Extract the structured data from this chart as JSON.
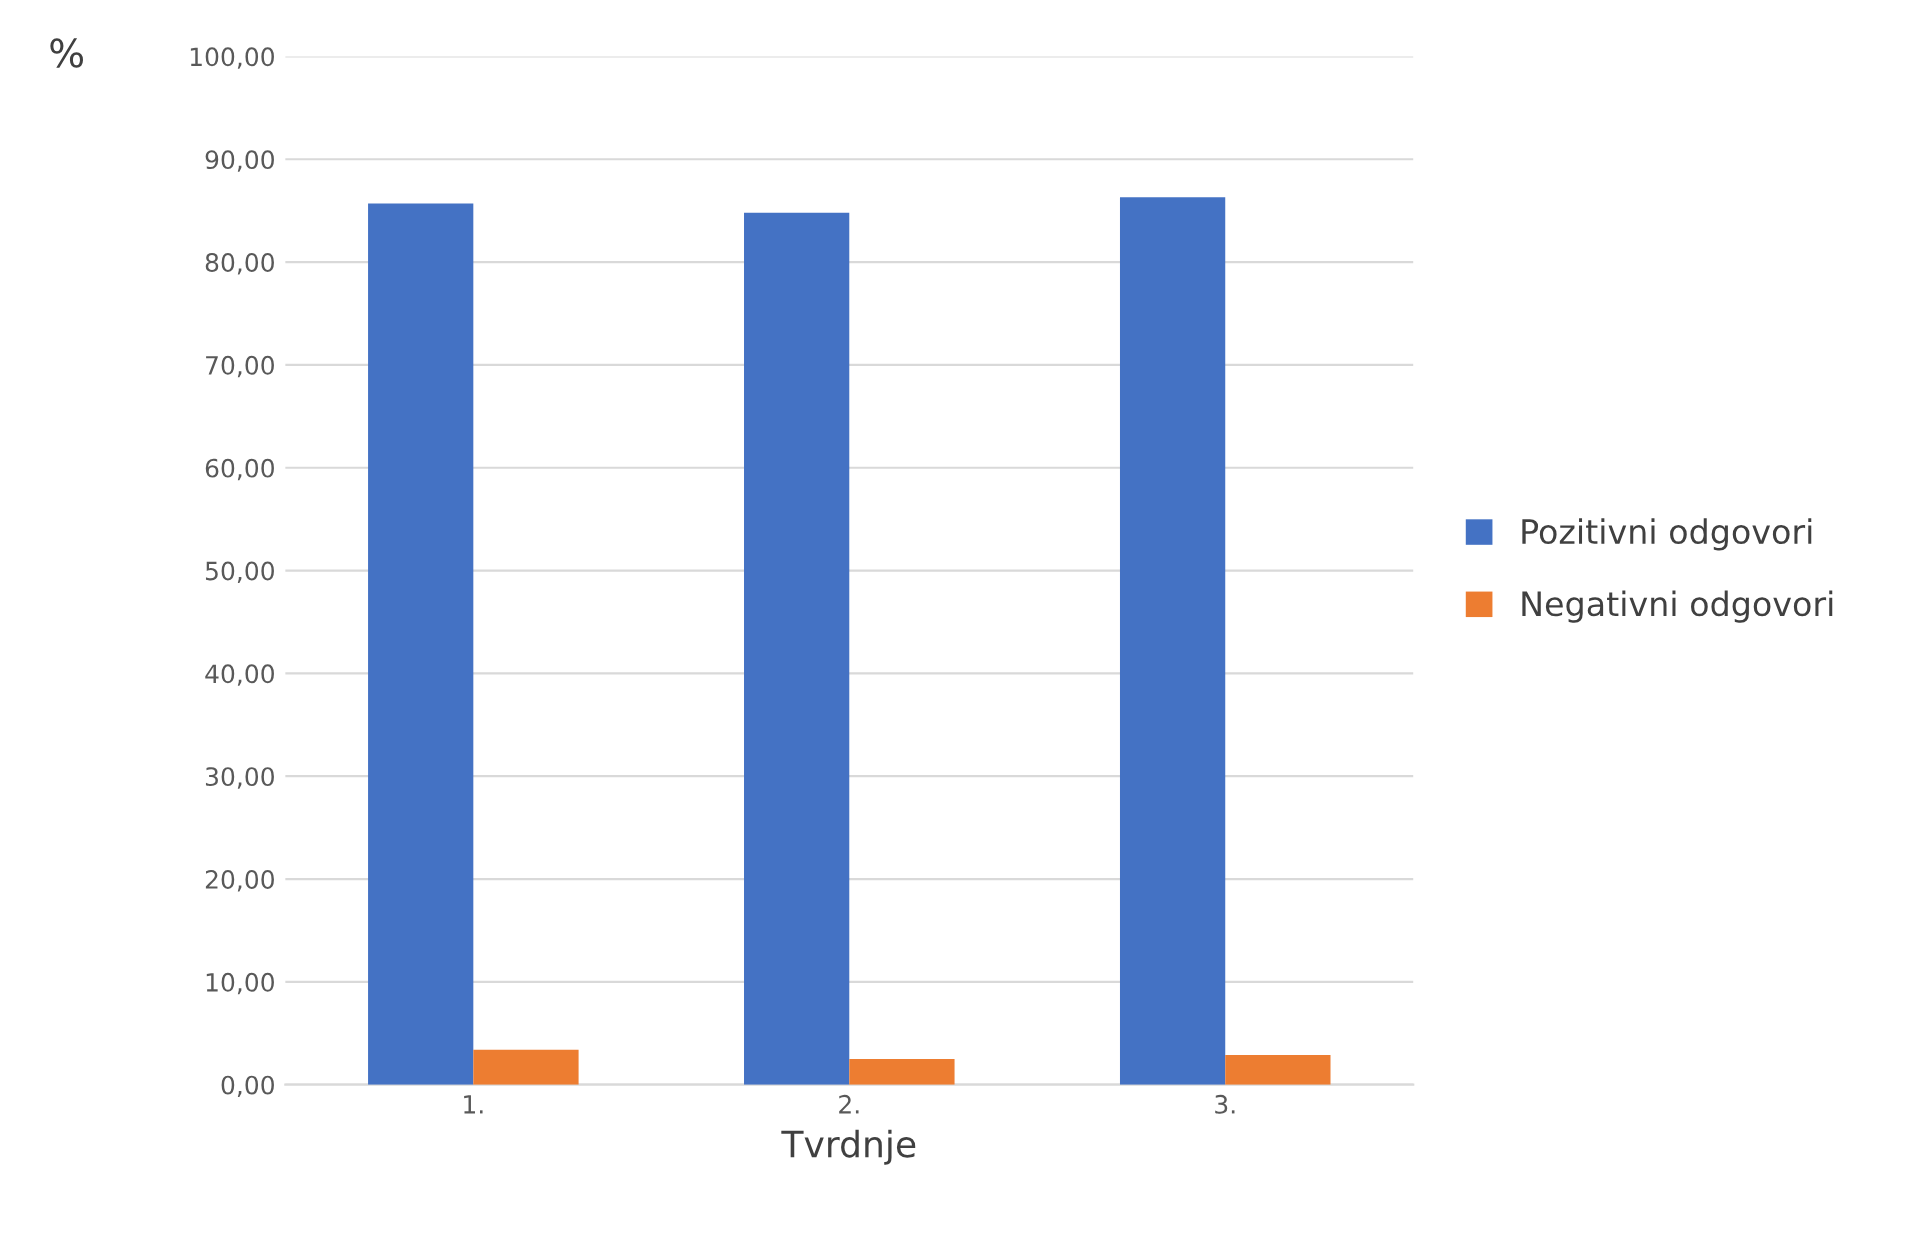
{
  "chart_data": {
    "type": "bar",
    "ylabel": "%",
    "xlabel": "Tvrdnje",
    "categories": [
      "1.",
      "2.",
      "3."
    ],
    "series": [
      {
        "name": "Pozitivni odgovori",
        "color": "#4472c4",
        "values": [
          85.7,
          84.8,
          86.3
        ]
      },
      {
        "name": "Negativni odgovori",
        "color": "#ed7d31",
        "values": [
          3.4,
          2.5,
          2.9
        ]
      }
    ],
    "ylim": [
      0,
      100
    ],
    "yticks": [
      {
        "value": 0,
        "label": "0,00"
      },
      {
        "value": 10,
        "label": "10,00"
      },
      {
        "value": 20,
        "label": "20,00"
      },
      {
        "value": 30,
        "label": "30,00"
      },
      {
        "value": 40,
        "label": "40,00"
      },
      {
        "value": 50,
        "label": "50,00"
      },
      {
        "value": 60,
        "label": "60,00"
      },
      {
        "value": 70,
        "label": "70,00"
      },
      {
        "value": 80,
        "label": "80,00"
      },
      {
        "value": 90,
        "label": "90,00"
      },
      {
        "value": 100,
        "label": "100,00"
      }
    ],
    "grid": "y",
    "legend": "right"
  }
}
